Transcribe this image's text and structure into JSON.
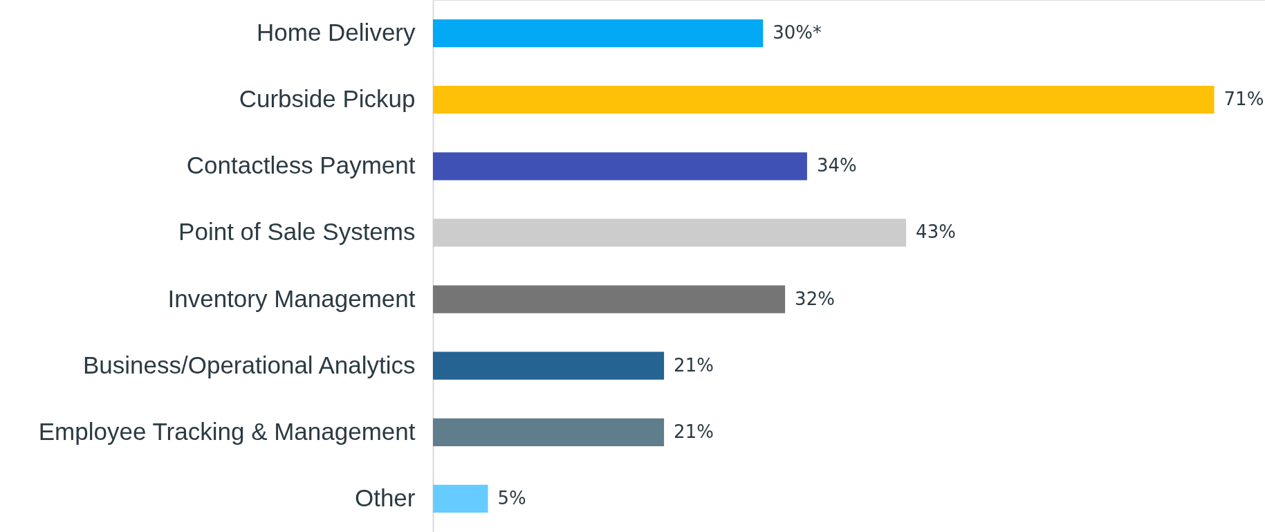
{
  "chart_data": {
    "type": "bar",
    "orientation": "horizontal",
    "categories": [
      "Home Delivery",
      "Curbside Pickup",
      "Contactless Payment",
      "Point of Sale Systems",
      "Inventory Management",
      "Business/Operational Analytics",
      "Employee Tracking & Management",
      "Other"
    ],
    "values": [
      30,
      71,
      34,
      43,
      32,
      21,
      21,
      5
    ],
    "value_labels": [
      "30%*",
      "71%",
      "34%",
      "43%",
      "32%",
      "21%",
      "21%",
      "5%"
    ],
    "colors": [
      "#03a9f4",
      "#ffc107",
      "#3f51b5",
      "#cccccc",
      "#757575",
      "#246392",
      "#607d8b",
      "#66ccff"
    ],
    "grid": false
  }
}
